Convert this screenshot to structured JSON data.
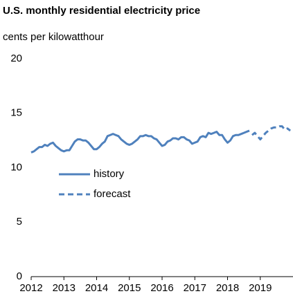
{
  "chart_data": {
    "type": "line",
    "title": "U.S. monthly residential electricity price",
    "y_label": "cents per kilowatthour",
    "x": [
      2012,
      2012.083,
      2012.167,
      2012.25,
      2012.333,
      2012.417,
      2012.5,
      2012.583,
      2012.667,
      2012.75,
      2012.833,
      2012.917,
      2013,
      2013.083,
      2013.167,
      2013.25,
      2013.333,
      2013.417,
      2013.5,
      2013.583,
      2013.667,
      2013.75,
      2013.833,
      2013.917,
      2014,
      2014.083,
      2014.167,
      2014.25,
      2014.333,
      2014.417,
      2014.5,
      2014.583,
      2014.667,
      2014.75,
      2014.833,
      2014.917,
      2015,
      2015.083,
      2015.167,
      2015.25,
      2015.333,
      2015.417,
      2015.5,
      2015.583,
      2015.667,
      2015.75,
      2015.833,
      2015.917,
      2016,
      2016.083,
      2016.167,
      2016.25,
      2016.333,
      2016.417,
      2016.5,
      2016.583,
      2016.667,
      2016.75,
      2016.833,
      2016.917,
      2017,
      2017.083,
      2017.167,
      2017.25,
      2017.333,
      2017.417,
      2017.5,
      2017.583,
      2017.667,
      2017.75,
      2017.833,
      2017.917,
      2018,
      2018.083,
      2018.167,
      2018.25,
      2018.333,
      2018.417,
      2018.5,
      2018.583,
      2018.667,
      2018.75,
      2018.833,
      2018.917,
      2019,
      2019.083,
      2019.167,
      2019.25,
      2019.333,
      2019.417,
      2019.5,
      2019.583,
      2019.667,
      2019.75,
      2019.833,
      2019.917
    ],
    "series": [
      {
        "name": "history",
        "color": "#4f81bd",
        "dash": false,
        "values": [
          11.4,
          11.5,
          11.7,
          11.9,
          11.9,
          12.1,
          12.0,
          12.2,
          12.3,
          12.0,
          11.8,
          11.6,
          11.5,
          11.6,
          11.6,
          12.0,
          12.4,
          12.6,
          12.6,
          12.5,
          12.5,
          12.3,
          12.0,
          11.7,
          11.7,
          11.9,
          12.2,
          12.4,
          12.9,
          13.0,
          13.1,
          13.0,
          12.9,
          12.6,
          12.4,
          12.2,
          12.1,
          12.2,
          12.4,
          12.6,
          12.9,
          12.9,
          13.0,
          12.9,
          12.9,
          12.7,
          12.6,
          12.3,
          12.0,
          12.1,
          12.4,
          12.5,
          12.7,
          12.7,
          12.6,
          12.8,
          12.8,
          12.6,
          12.5,
          12.2,
          12.3,
          12.4,
          12.8,
          12.9,
          12.8,
          13.2,
          13.1,
          13.2,
          13.3,
          13.0,
          13.0,
          12.6,
          12.3,
          12.5,
          12.9,
          13.0,
          13.0,
          13.1,
          13.2,
          13.3,
          13.4,
          null,
          null,
          null,
          null,
          null,
          null,
          null,
          null,
          null,
          null,
          null,
          null,
          null,
          null,
          null
        ]
      },
      {
        "name": "forecast",
        "color": "#4f81bd",
        "dash": true,
        "values": [
          null,
          null,
          null,
          null,
          null,
          null,
          null,
          null,
          null,
          null,
          null,
          null,
          null,
          null,
          null,
          null,
          null,
          null,
          null,
          null,
          null,
          null,
          null,
          null,
          null,
          null,
          null,
          null,
          null,
          null,
          null,
          null,
          null,
          null,
          null,
          null,
          null,
          null,
          null,
          null,
          null,
          null,
          null,
          null,
          null,
          null,
          null,
          null,
          null,
          null,
          null,
          null,
          null,
          null,
          null,
          null,
          null,
          null,
          null,
          null,
          null,
          null,
          null,
          null,
          null,
          null,
          null,
          null,
          null,
          null,
          null,
          null,
          null,
          null,
          null,
          null,
          null,
          null,
          null,
          null,
          null,
          13.0,
          13.2,
          12.9,
          12.6,
          12.9,
          13.2,
          13.4,
          13.6,
          13.7,
          13.7,
          13.8,
          13.8,
          13.5,
          13.6,
          13.4
        ]
      }
    ],
    "xlim": [
      2012,
      2020
    ],
    "xticks": [
      2012,
      2013,
      2014,
      2015,
      2016,
      2017,
      2018,
      2019
    ],
    "ylim": [
      0,
      20
    ],
    "yticks": [
      0,
      5,
      10,
      15,
      20
    ],
    "grid": false,
    "legend": "center-left"
  }
}
